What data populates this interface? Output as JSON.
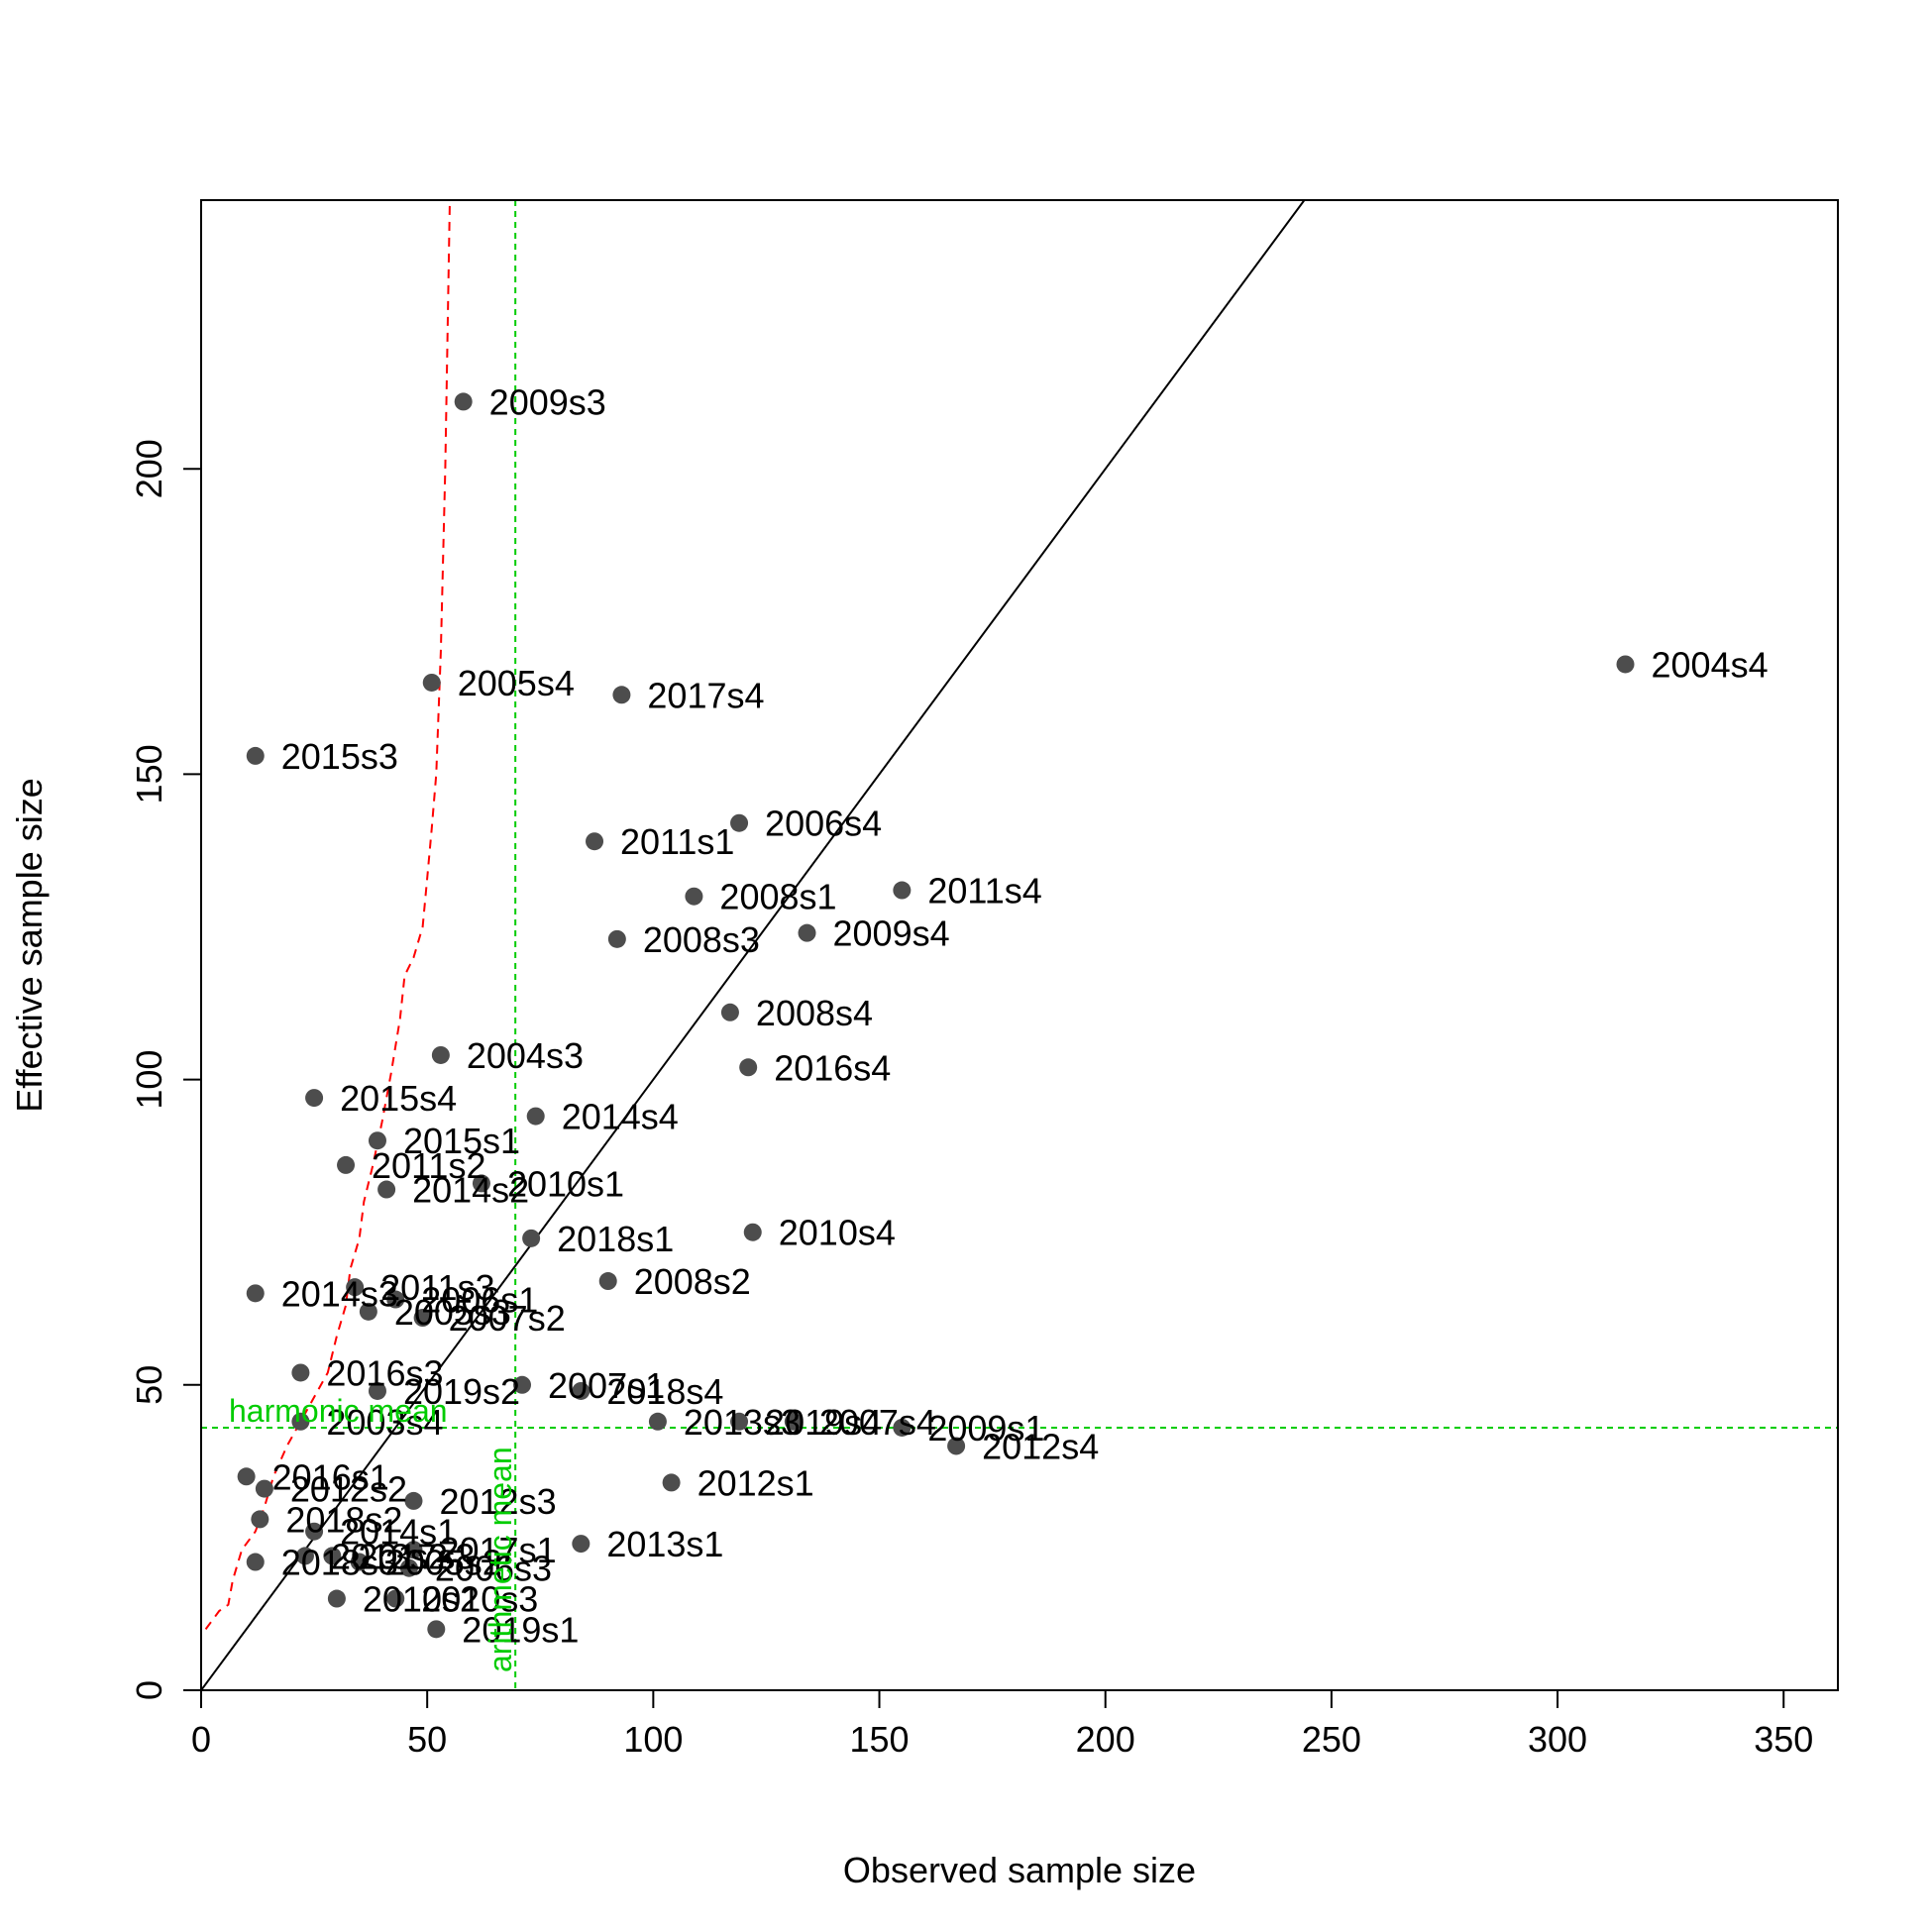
{
  "chart_data": {
    "type": "scatter",
    "title": "",
    "xlabel": "Observed sample size",
    "ylabel": "Effective sample size",
    "xlim": [
      0,
      362
    ],
    "ylim": [
      0,
      244
    ],
    "x_ticks": [
      0,
      50,
      100,
      150,
      200,
      250,
      300,
      350
    ],
    "y_ticks": [
      0,
      50,
      100,
      150,
      200
    ],
    "grid": false,
    "legend": "none",
    "colors": {
      "points": "#4d4d4d",
      "identity_line": "#000000",
      "reference_lines": "#00cc00",
      "running_mean_line": "#ff0000",
      "text": "#000000"
    },
    "identity_line": {
      "label": "",
      "slope": 1,
      "intercept": 0
    },
    "reference_lines": {
      "arithmetic_mean": {
        "label": "arithmetic mean",
        "x": 69.5
      },
      "harmonic_mean": {
        "label": "harmonic mean",
        "y": 43
      }
    },
    "running_mean_curve": {
      "x": [
        1,
        4,
        6,
        7,
        9,
        12,
        14,
        16,
        19,
        22,
        25,
        28,
        30,
        32,
        33,
        35,
        36,
        38,
        40,
        42,
        44,
        45,
        47,
        49,
        50,
        51,
        52,
        53,
        54,
        55
      ],
      "y": [
        10,
        13,
        14,
        18,
        23,
        26,
        30,
        35,
        40,
        44,
        48,
        52,
        58,
        63,
        69,
        74,
        80,
        86,
        93,
        101,
        110,
        117,
        120,
        125,
        133,
        141,
        150,
        170,
        200,
        244
      ]
    },
    "points": [
      {
        "label": "2004s4",
        "x": 315,
        "y": 168
      },
      {
        "label": "2009s3",
        "x": 58,
        "y": 211
      },
      {
        "label": "2005s4",
        "x": 51,
        "y": 165
      },
      {
        "label": "2017s4",
        "x": 93,
        "y": 163
      },
      {
        "label": "2015s3",
        "x": 12,
        "y": 153
      },
      {
        "label": "2006s4",
        "x": 119,
        "y": 142
      },
      {
        "label": "2011s1",
        "x": 87,
        "y": 139
      },
      {
        "label": "2011s4",
        "x": 155,
        "y": 131
      },
      {
        "label": "2008s1",
        "x": 109,
        "y": 130
      },
      {
        "label": "2009s4",
        "x": 134,
        "y": 124
      },
      {
        "label": "2008s3",
        "x": 92,
        "y": 123
      },
      {
        "label": "2008s4",
        "x": 117,
        "y": 111
      },
      {
        "label": "2004s3",
        "x": 53,
        "y": 104
      },
      {
        "label": "2016s4",
        "x": 121,
        "y": 102
      },
      {
        "label": "2015s4",
        "x": 25,
        "y": 97
      },
      {
        "label": "2014s4",
        "x": 74,
        "y": 94
      },
      {
        "label": "2015s1",
        "x": 39,
        "y": 90
      },
      {
        "label": "2011s2",
        "x": 32,
        "y": 86
      },
      {
        "label": "2010s1",
        "x": 62,
        "y": 83
      },
      {
        "label": "2014s2",
        "x": 41,
        "y": 82
      },
      {
        "label": "2010s4",
        "x": 122,
        "y": 75
      },
      {
        "label": "2018s1",
        "x": 73,
        "y": 74
      },
      {
        "label": "2008s2",
        "x": 90,
        "y": 67
      },
      {
        "label": "2011s3",
        "x": 34,
        "y": 66
      },
      {
        "label": "2014s3",
        "x": 12,
        "y": 65
      },
      {
        "label": "2006s1",
        "x": 43,
        "y": 64
      },
      {
        "label": "2005s3",
        "x": 37,
        "y": 62
      },
      {
        "label": "2007s2",
        "x": 49,
        "y": 61
      },
      {
        "label": "2016s3",
        "x": 22,
        "y": 52
      },
      {
        "label": "2007s1",
        "x": 71,
        "y": 50
      },
      {
        "label": "2018s4",
        "x": 84,
        "y": 49
      },
      {
        "label": "2019s2",
        "x": 39,
        "y": 49
      },
      {
        "label": "2013s3",
        "x": 101,
        "y": 44
      },
      {
        "label": "2003s4",
        "x": 22,
        "y": 44
      },
      {
        "label": "2019s4",
        "x": 119,
        "y": 44
      },
      {
        "label": "2007s4",
        "x": 131,
        "y": 44
      },
      {
        "label": "2009s1",
        "x": 155,
        "y": 43
      },
      {
        "label": "2012s4",
        "x": 167,
        "y": 40
      },
      {
        "label": "2016s1",
        "x": 10,
        "y": 35
      },
      {
        "label": "2012s1",
        "x": 104,
        "y": 34
      },
      {
        "label": "2012s2",
        "x": 14,
        "y": 33
      },
      {
        "label": "2012s3",
        "x": 47,
        "y": 31
      },
      {
        "label": "2018s2",
        "x": 13,
        "y": 28
      },
      {
        "label": "2014s1",
        "x": 25,
        "y": 26
      },
      {
        "label": "2013s1",
        "x": 84,
        "y": 24
      },
      {
        "label": "2017s1",
        "x": 47,
        "y": 23
      },
      {
        "label": "2013s2",
        "x": 23,
        "y": 22
      },
      {
        "label": "2017s3",
        "x": 29,
        "y": 22
      },
      {
        "label": "2005s2",
        "x": 35,
        "y": 21
      },
      {
        "label": "2006s3",
        "x": 46,
        "y": 20
      },
      {
        "label": "2018s3",
        "x": 12,
        "y": 21
      },
      {
        "label": "2010s2",
        "x": 30,
        "y": 15
      },
      {
        "label": "2010s3",
        "x": 43,
        "y": 15
      },
      {
        "label": "2019s1",
        "x": 52,
        "y": 10
      }
    ]
  }
}
